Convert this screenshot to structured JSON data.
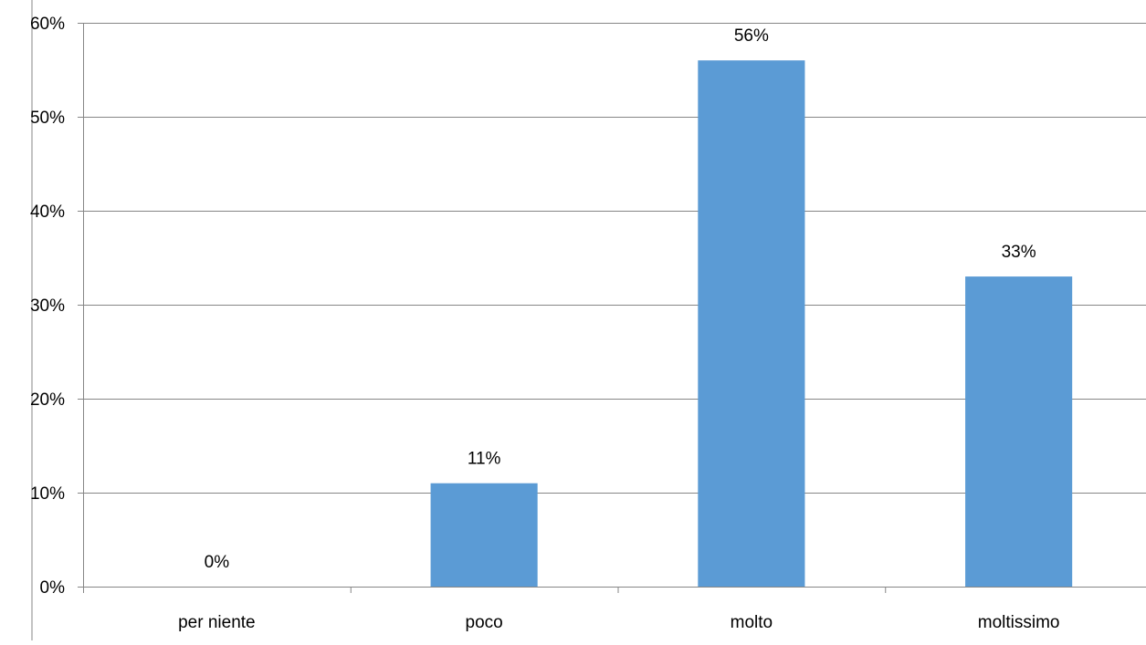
{
  "chart_data": {
    "type": "bar",
    "categories": [
      "per niente",
      "poco",
      "molto",
      "moltissimo"
    ],
    "values": [
      0,
      11,
      56,
      33
    ],
    "data_labels": [
      "0%",
      "11%",
      "56%",
      "33%"
    ],
    "title": "",
    "xlabel": "",
    "ylabel": "",
    "ylim": [
      0,
      60
    ],
    "yticks": [
      0,
      10,
      20,
      30,
      40,
      50,
      60
    ],
    "ytick_labels": [
      "0%",
      "10%",
      "20%",
      "30%",
      "40%",
      "50%",
      "60%"
    ],
    "grid": true,
    "legend": "none",
    "colors": {
      "bar": "#5b9bd5",
      "grid": "#868686",
      "axis": "#868686"
    }
  }
}
